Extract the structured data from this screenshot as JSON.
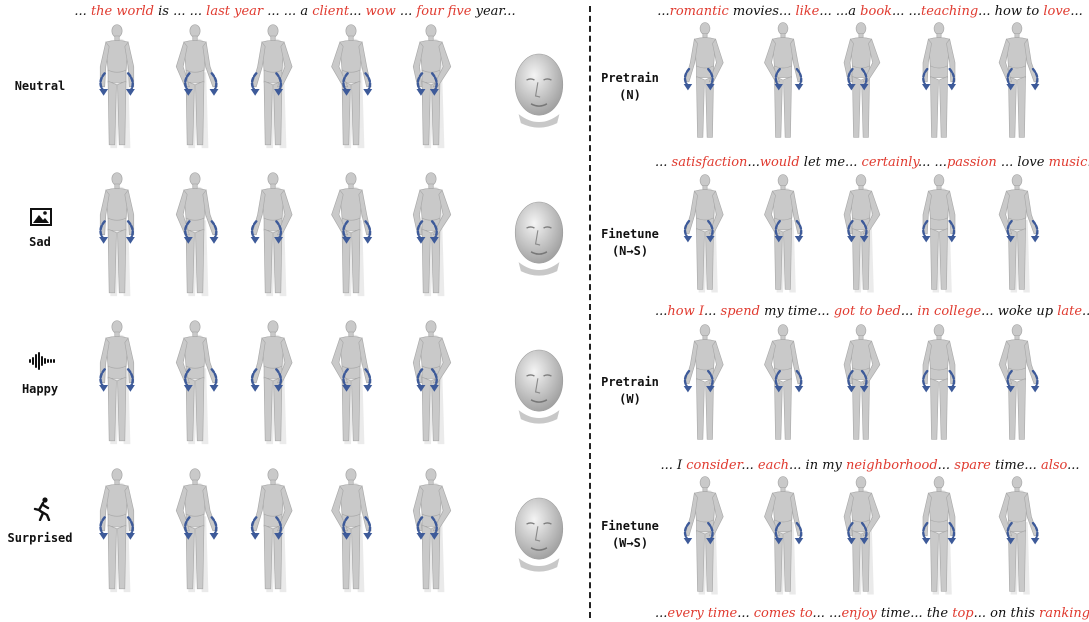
{
  "left_panel": {
    "rows": [
      {
        "label": "Neutral",
        "icon": "none",
        "caption": [
          {
            "t": "... ",
            "hl": false
          },
          {
            "t": "the world",
            "hl": true
          },
          {
            "t": " is ... ... ",
            "hl": false
          },
          {
            "t": "last year",
            "hl": true
          },
          {
            "t": " ... ... a ",
            "hl": false
          },
          {
            "t": "client",
            "hl": true
          },
          {
            "t": "... ",
            "hl": false
          },
          {
            "t": "wow",
            "hl": true
          },
          {
            "t": " ...  ",
            "hl": false
          },
          {
            "t": "four five",
            "hl": true
          },
          {
            "t": " year...",
            "hl": false
          }
        ]
      },
      {
        "label": "Sad",
        "icon": "image-icon",
        "caption": []
      },
      {
        "label": "Happy",
        "icon": "audio-wave-icon",
        "caption": []
      },
      {
        "label": "Surprised",
        "icon": "running-person-icon",
        "caption": []
      }
    ]
  },
  "right_panel": {
    "rows": [
      {
        "label": "Pretrain\n(N)",
        "caption": [
          {
            "t": "...",
            "hl": false
          },
          {
            "t": "romantic",
            "hl": true
          },
          {
            "t": " movies... ",
            "hl": false
          },
          {
            "t": "like",
            "hl": true
          },
          {
            "t": "... ...a ",
            "hl": false
          },
          {
            "t": "book",
            "hl": true
          },
          {
            "t": "... ...",
            "hl": false
          },
          {
            "t": "teaching",
            "hl": true
          },
          {
            "t": "... how to ",
            "hl": false
          },
          {
            "t": "love",
            "hl": true
          },
          {
            "t": "...",
            "hl": false
          }
        ]
      },
      {
        "label": "Finetune\n(N→S)",
        "caption": [
          {
            "t": "... ",
            "hl": false
          },
          {
            "t": "satisfaction",
            "hl": true
          },
          {
            "t": "...",
            "hl": false
          },
          {
            "t": "would",
            "hl": true
          },
          {
            "t": " let me... ",
            "hl": false
          },
          {
            "t": "certainly",
            "hl": true
          },
          {
            "t": "...  ...",
            "hl": false
          },
          {
            "t": "passion",
            "hl": true
          },
          {
            "t": " ... love ",
            "hl": false
          },
          {
            "t": "music",
            "hl": true
          },
          {
            "t": "...",
            "hl": false
          }
        ]
      },
      {
        "label": "Pretrain\n(W)",
        "caption": [
          {
            "t": "...",
            "hl": false
          },
          {
            "t": "how I",
            "hl": true
          },
          {
            "t": "... ",
            "hl": false
          },
          {
            "t": "spend",
            "hl": true
          },
          {
            "t": " my time... ",
            "hl": false
          },
          {
            "t": "got to bed",
            "hl": true
          },
          {
            "t": "... ",
            "hl": false
          },
          {
            "t": "in college",
            "hl": true
          },
          {
            "t": "... woke up ",
            "hl": false
          },
          {
            "t": "late",
            "hl": true
          },
          {
            "t": "...",
            "hl": false
          }
        ]
      },
      {
        "label": "Finetune\n(W→S)",
        "caption": [
          {
            "t": "... I ",
            "hl": false
          },
          {
            "t": "consider",
            "hl": true
          },
          {
            "t": "... ",
            "hl": false
          },
          {
            "t": "each",
            "hl": true
          },
          {
            "t": "... in my ",
            "hl": false
          },
          {
            "t": "neighborhood",
            "hl": true
          },
          {
            "t": "... ",
            "hl": false
          },
          {
            "t": "spare",
            "hl": true
          },
          {
            "t": " time... ",
            "hl": false
          },
          {
            "t": "also",
            "hl": true
          },
          {
            "t": "...",
            "hl": false
          }
        ]
      }
    ],
    "bottom_caption": [
      {
        "t": "...",
        "hl": false
      },
      {
        "t": "every time",
        "hl": true
      },
      {
        "t": "... ",
        "hl": false
      },
      {
        "t": "comes to",
        "hl": true
      },
      {
        "t": "...  ...",
        "hl": false
      },
      {
        "t": "enjoy",
        "hl": true
      },
      {
        "t": " time... the ",
        "hl": false
      },
      {
        "t": "top",
        "hl": true
      },
      {
        "t": "... on this ",
        "hl": false
      },
      {
        "t": "ranking",
        "hl": true
      },
      {
        "t": "...",
        "hl": false
      }
    ]
  },
  "colors": {
    "highlight": "#e03a2f",
    "motion_arrow": "#3d5a99",
    "body": "#c9c9c9"
  }
}
